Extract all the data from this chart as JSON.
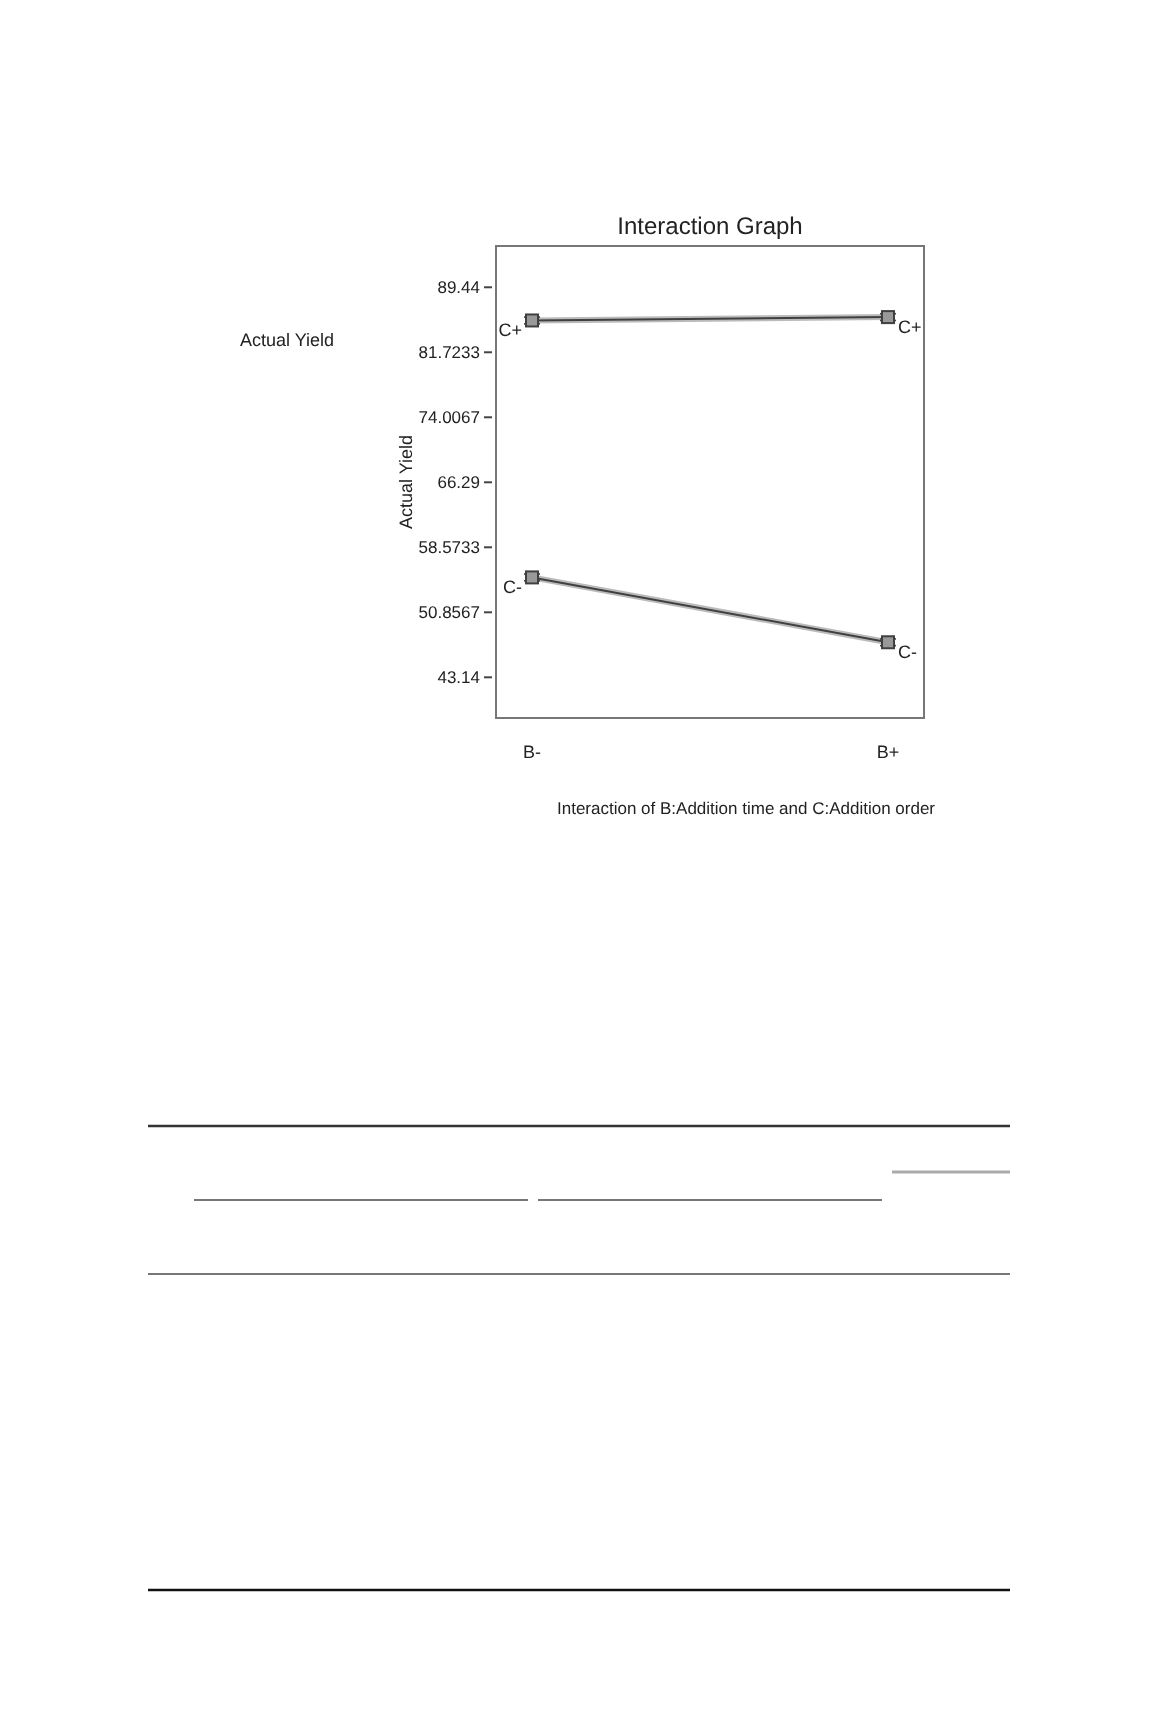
{
  "chart_data": {
    "type": "line",
    "title": "Interaction Graph",
    "xlabel": "Interaction of B:Addition time and C:Addition order",
    "ylabel": "Actual Yield",
    "annotations": [
      "Actual Yield"
    ],
    "categories": [
      "B-",
      "B+"
    ],
    "series": [
      {
        "name": "C+",
        "color": "#404040",
        "values": [
          85.5,
          85.9
        ],
        "errors": [
          0.4,
          0.4
        ]
      },
      {
        "name": "C-",
        "color": "#404040",
        "values": [
          55.0,
          47.3
        ],
        "errors": [
          0.4,
          0.4
        ]
      }
    ],
    "ylim": [
      38.31,
      94.34
    ],
    "yticks": [
      43.14,
      50.8567,
      58.5733,
      66.29,
      74.0067,
      81.7233,
      89.44
    ],
    "marker": "square",
    "line_style": "solid",
    "grid": false
  }
}
